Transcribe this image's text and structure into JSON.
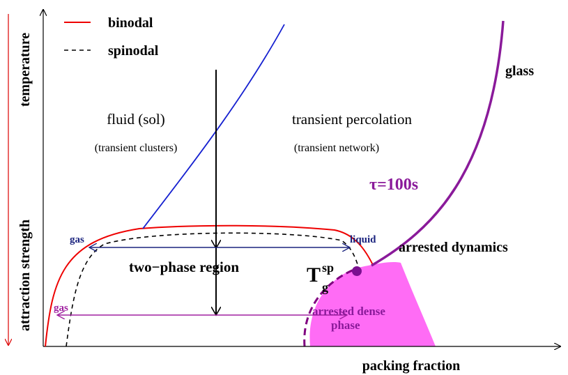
{
  "legend": {
    "binodal": "binodal",
    "spinodal": "spinodal"
  },
  "axes": {
    "y_top": "temperature",
    "y_bottom": "attraction strength",
    "x": "packing fraction"
  },
  "regions": {
    "fluid": {
      "title": "fluid (sol)",
      "subtitle": "(transient clusters)"
    },
    "percolation": {
      "title": "transient percolation",
      "subtitle": "(transient network)"
    },
    "two_phase": "two−phase region",
    "arrested_dynamics": "arrested dynamics",
    "arrested_dense": {
      "line1": "arrested dense",
      "line2": "phase"
    }
  },
  "labels": {
    "glass": "glass",
    "tau": "τ=100s",
    "gas_upper": "gas",
    "liquid": "liquid",
    "gas_lower": "gas",
    "tg": {
      "base": "T",
      "sub": "g",
      "sup": "sp"
    }
  }
}
